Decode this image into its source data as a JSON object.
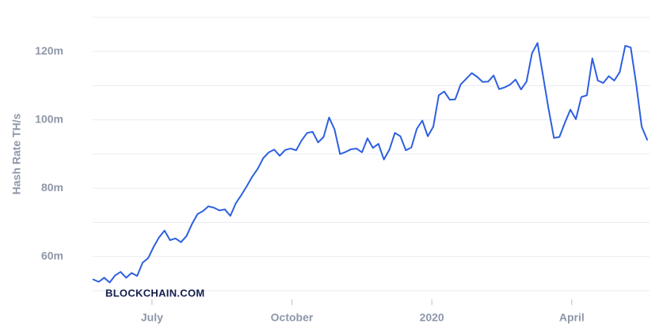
{
  "chart_data": {
    "type": "line",
    "y_label": "Hash Rate TH/s",
    "watermark": "BLOCKCHAIN.COM",
    "xlim": [
      2019.394,
      2020.389
    ],
    "xticks": [
      {
        "value": 2019.5,
        "label": "July"
      },
      {
        "value": 2019.75,
        "label": "October"
      },
      {
        "value": 2020.0,
        "label": "2020"
      },
      {
        "value": 2020.25,
        "label": "April"
      }
    ],
    "ylim": [
      50,
      130
    ],
    "yticks": [
      {
        "value": 60,
        "label": "60m"
      },
      {
        "value": 80,
        "label": "80m"
      },
      {
        "value": 100,
        "label": "100m"
      },
      {
        "value": 120,
        "label": "120m"
      }
    ],
    "gridlines": [
      50,
      70,
      90,
      110,
      130
    ],
    "grid": true,
    "series": [
      {
        "color": "#2d5fe0",
        "x": [
          2019.395,
          2019.4048,
          2019.4146,
          2019.4244,
          2019.4342,
          2019.444,
          2019.4538,
          2019.4636,
          2019.4734,
          2019.4832,
          2019.493,
          2019.5028,
          2019.5126,
          2019.5224,
          2019.5322,
          2019.542,
          2019.5518,
          2019.5616,
          2019.5714,
          2019.5812,
          2019.591,
          2019.6008,
          2019.6106,
          2019.6204,
          2019.6302,
          2019.64,
          2019.6498,
          2019.6596,
          2019.6694,
          2019.6792,
          2019.689,
          2019.6988,
          2019.7086,
          2019.7184,
          2019.7282,
          2019.738,
          2019.7478,
          2019.7576,
          2019.7674,
          2019.7772,
          2019.787,
          2019.7968,
          2019.8066,
          2019.8164,
          2019.8262,
          2019.836,
          2019.8458,
          2019.8556,
          2019.8654,
          2019.8752,
          2019.885,
          2019.8948,
          2019.9046,
          2019.9144,
          2019.9242,
          2019.934,
          2019.9438,
          2019.9536,
          2019.9634,
          2019.9732,
          2019.983,
          2019.9928,
          2020.0026,
          2020.0124,
          2020.0222,
          2020.032,
          2020.0418,
          2020.0516,
          2020.0614,
          2020.0712,
          2020.081,
          2020.0908,
          2020.1006,
          2020.1104,
          2020.1202,
          2020.13,
          2020.1398,
          2020.1496,
          2020.1594,
          2020.1692,
          2020.179,
          2020.1888,
          2020.1986,
          2020.2084,
          2020.2182,
          2020.228,
          2020.2378,
          2020.2476,
          2020.2574,
          2020.2672,
          2020.277,
          2020.2868,
          2020.2966,
          2020.3064,
          2020.3162,
          2020.326,
          2020.3358,
          2020.3456,
          2020.3554,
          2020.3652,
          2020.375,
          2020.3848
        ],
        "values": [
          53.3,
          52.6,
          53.8,
          52.4,
          54.5,
          55.5,
          53.8,
          55.2,
          54.3,
          58.2,
          59.5,
          62.8,
          65.6,
          67.6,
          64.8,
          65.3,
          64.2,
          66,
          69.5,
          72.4,
          73.3,
          74.7,
          74.3,
          73.5,
          73.8,
          71.9,
          75.6,
          78,
          80.6,
          83.4,
          85.7,
          88.8,
          90.5,
          91.3,
          89.5,
          91.2,
          91.6,
          91.1,
          94,
          96.2,
          96.5,
          93.4,
          95,
          100.7,
          97.2,
          90,
          90.6,
          91.4,
          91.6,
          90.5,
          94.6,
          91.8,
          93,
          88.4,
          91.3,
          96.2,
          95.2,
          91.1,
          91.9,
          97.4,
          99.8,
          95.2,
          98,
          107.2,
          108.3,
          105.9,
          106,
          110.4,
          112,
          113.7,
          112.6,
          111.1,
          111.2,
          113,
          109,
          109.5,
          110.3,
          111.8,
          108.9,
          111.2,
          119.5,
          122.5,
          113,
          103.4,
          94.7,
          95,
          99.2,
          103,
          100.2,
          106.7,
          107.2,
          118,
          111.5,
          110.8,
          112.8,
          111.5,
          114,
          121.7,
          121.2,
          110.5,
          98,
          94.2
        ]
      }
    ]
  }
}
